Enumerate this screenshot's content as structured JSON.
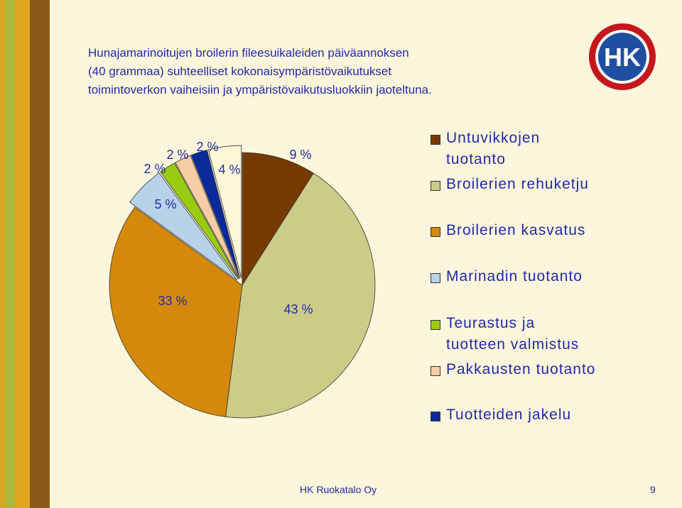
{
  "title_lines": [
    "Hunajamarinoitujen broilerin fileesuikaleiden päiväannoksen",
    "(40 grammaa) suhteelliset kokonaisympäristövaikutukset",
    "toimintoverkon vaiheisiin ja ympäristövaikutusluokkiin jaoteltuna."
  ],
  "logo_text": "HK",
  "footer": {
    "company": "HK Ruokatalo Oy",
    "page": "9"
  },
  "colors": {
    "text": "#1f2aa8",
    "background": "#fdf6dc"
  },
  "chart_data": {
    "type": "pie",
    "slices": [
      {
        "label": "Untuvikkojen tuotanto",
        "value": 9,
        "display": "9 %",
        "color": "#763a00"
      },
      {
        "label": "Broilerien rehuketju",
        "value": 43,
        "display": "43 %",
        "color": "#cccc88"
      },
      {
        "label": "Broilerien kasvatus",
        "value": 33,
        "display": "33 %",
        "color": "#d4890a"
      },
      {
        "label": "Marinadin tuotanto",
        "value": 5,
        "display": "5 %",
        "color": "#b8d2ea"
      },
      {
        "label": "Teurastus ja tuotteen valmistus",
        "value": 2,
        "display": "2 %",
        "color": "#99cc11"
      },
      {
        "label": "Pakkausten tuotanto",
        "value": 2,
        "display": "2 %",
        "color": "#f8cca4"
      },
      {
        "label": "Tuotteiden jakelu",
        "value": 2,
        "display": "2 %",
        "color": "#0a2a9a"
      },
      {
        "label": "",
        "value": 4,
        "display": "4 %",
        "color": "#fff8d8"
      }
    ],
    "legend": [
      {
        "lines": [
          "Untuvikkojen",
          "tuotanto"
        ],
        "color": "#763a00"
      },
      {
        "lines": [
          "Broilerien rehuketju"
        ],
        "color": "#cccc88"
      },
      {
        "lines": [
          "Broilerien kasvatus"
        ],
        "color": "#d4890a"
      },
      {
        "lines": [
          "Marinadin tuotanto"
        ],
        "color": "#b8d2ea"
      },
      {
        "lines": [
          "Teurastus ja",
          "tuotteen valmistus"
        ],
        "color": "#99cc11"
      },
      {
        "lines": [
          "Pakkausten tuotanto"
        ],
        "color": "#f8cca4"
      },
      {
        "lines": [
          "Tuotteiden jakelu"
        ],
        "color": "#0a2a9a"
      }
    ],
    "legend_position": "right"
  }
}
